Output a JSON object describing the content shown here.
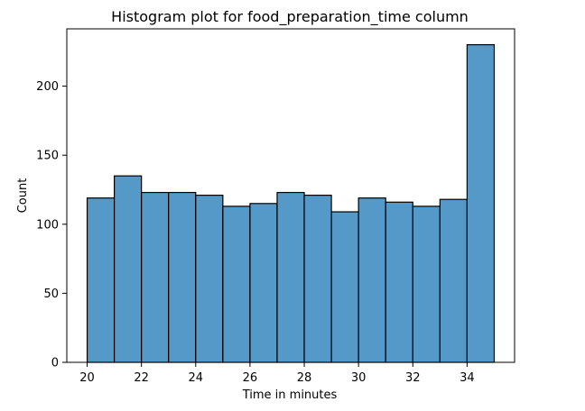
{
  "chart_data": {
    "type": "bar",
    "title": "Histogram plot for food_preparation_time column",
    "xlabel": "Time in minutes",
    "ylabel": "Count",
    "xlim": [
      19.25,
      35.75
    ],
    "ylim": [
      0,
      241.5
    ],
    "xticks": [
      20,
      22,
      24,
      26,
      28,
      30,
      32,
      34
    ],
    "yticks": [
      0,
      50,
      100,
      150,
      200
    ],
    "bins": [
      {
        "start": 20,
        "end": 21,
        "count": 119
      },
      {
        "start": 21,
        "end": 22,
        "count": 135
      },
      {
        "start": 22,
        "end": 23,
        "count": 123
      },
      {
        "start": 23,
        "end": 24,
        "count": 123
      },
      {
        "start": 24,
        "end": 25,
        "count": 121
      },
      {
        "start": 25,
        "end": 26,
        "count": 113
      },
      {
        "start": 26,
        "end": 27,
        "count": 115
      },
      {
        "start": 27,
        "end": 28,
        "count": 123
      },
      {
        "start": 28,
        "end": 29,
        "count": 121
      },
      {
        "start": 29,
        "end": 30,
        "count": 109
      },
      {
        "start": 30,
        "end": 31,
        "count": 119
      },
      {
        "start": 31,
        "end": 32,
        "count": 116
      },
      {
        "start": 32,
        "end": 33,
        "count": 113
      },
      {
        "start": 33,
        "end": 34,
        "count": 118
      },
      {
        "start": 34,
        "end": 35,
        "count": 230
      }
    ],
    "grid": false,
    "bar_color": "#5499c7",
    "edge_color": "#000000"
  }
}
